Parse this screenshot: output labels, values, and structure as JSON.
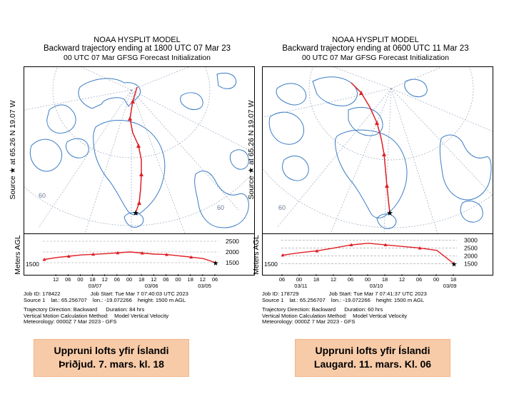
{
  "panels": [
    {
      "title1": "NOAA HYSPLIT MODEL",
      "title2": "Backward trajectory ending at 1800 UTC 07 Mar 23",
      "title3": "00 UTC 07 Mar    GFSG  Forecast Initialization",
      "ylabel_map": "Source ★  at  65.26 N   19.07 W",
      "ylabel_alt": "Meters AGL",
      "lat_labels": [
        "60",
        "60"
      ],
      "alt_ticks": [
        "2500",
        "2000",
        "1500"
      ],
      "start_alt_label": "1500",
      "x_ticks": [
        "12",
        "06",
        "00",
        "18",
        "12",
        "06",
        "00",
        "18",
        "12",
        "06",
        "00",
        "18",
        "12",
        "06"
      ],
      "date_labels": [
        "03/07",
        "03/06",
        "03/05"
      ],
      "info_lines": [
        [
          "Job ID: 178422",
          "Job Start: Tue Mar  7 07:40:03 UTC 2023"
        ],
        [
          "Source 1",
          "lat.: 65.256707",
          "lon.: -19.072266",
          "height: 1500 m AGL"
        ],
        [
          "Trajectory Direction: Backward",
          "Duration: 84 hrs"
        ],
        [
          "Vertical Motion Calculation Method:",
          "Model Vertical Velocity"
        ],
        [
          "Meteorology: 0000Z  7 Mar 2023 - GFS"
        ]
      ],
      "caption1": "Uppruni lofts yfir Íslandi",
      "caption2": "Þriðjud. 7. mars. kl. 18"
    },
    {
      "title1": "NOAA HYSPLIT MODEL",
      "title2": "Backward trajectory ending at 0600 UTC 11 Mar 23",
      "title3": "00 UTC 07 Mar    GFSG  Forecast Initialization",
      "ylabel_map": "Source ★  at  65.26 N   19.07 W",
      "ylabel_alt": "Meters AGL",
      "lat_labels": [
        "60"
      ],
      "alt_ticks": [
        "3000",
        "2500",
        "2000",
        "1500"
      ],
      "start_alt_label": "1500",
      "x_ticks": [
        "06",
        "00",
        "18",
        "12",
        "06",
        "00",
        "18",
        "12",
        "06",
        "00",
        "18"
      ],
      "date_labels": [
        "03/11",
        "03/10",
        "03/09"
      ],
      "info_lines": [
        [
          "Job ID: 178729",
          "Job Start: Tue Mar  7 07:41:37 UTC 2023"
        ],
        [
          "Source 1",
          "lat.: 65.256707",
          "lon.: -19.072266",
          "height: 1500 m AGL"
        ],
        [
          "Trajectory Direction: Backward",
          "Duration: 60 hrs"
        ],
        [
          "Vertical Motion Calculation Method:",
          "Model Vertical Velocity"
        ],
        [
          "Meteorology: 0000Z  7 Mar 2023 - GFS"
        ]
      ],
      "caption1": "Uppruni lofts yfir Íslandi",
      "caption2": "Laugard. 11. mars. Kl. 06"
    }
  ],
  "colors": {
    "trajectory": "#e01e24",
    "coastline": "#3b7cc4",
    "grid": "#9aa8c0",
    "caption_bg": "#f8cba8"
  },
  "chart_data": [
    {
      "type": "line",
      "series": [
        {
          "x_hours_before_end": [
            0,
            6,
            12,
            18,
            24,
            30,
            36,
            42,
            48,
            54,
            60,
            66,
            72,
            78,
            84
          ],
          "y": [
            1500,
            1690,
            1760,
            1820,
            1880,
            1900,
            1950,
            2000,
            1960,
            1920,
            1890,
            1860,
            1800,
            1740,
            1650
          ]
        }
      ],
      "ylim": [
        1300,
        2700
      ]
    },
    {
      "type": "line",
      "series": [
        {
          "x_hours_before_end": [
            0,
            6,
            12,
            18,
            24,
            30,
            36,
            42,
            48,
            54,
            60
          ],
          "y": [
            1500,
            2350,
            2500,
            2600,
            2700,
            2800,
            2700,
            2500,
            2320,
            2200,
            2050
          ]
        }
      ],
      "ylim": [
        1300,
        3200
      ]
    }
  ]
}
